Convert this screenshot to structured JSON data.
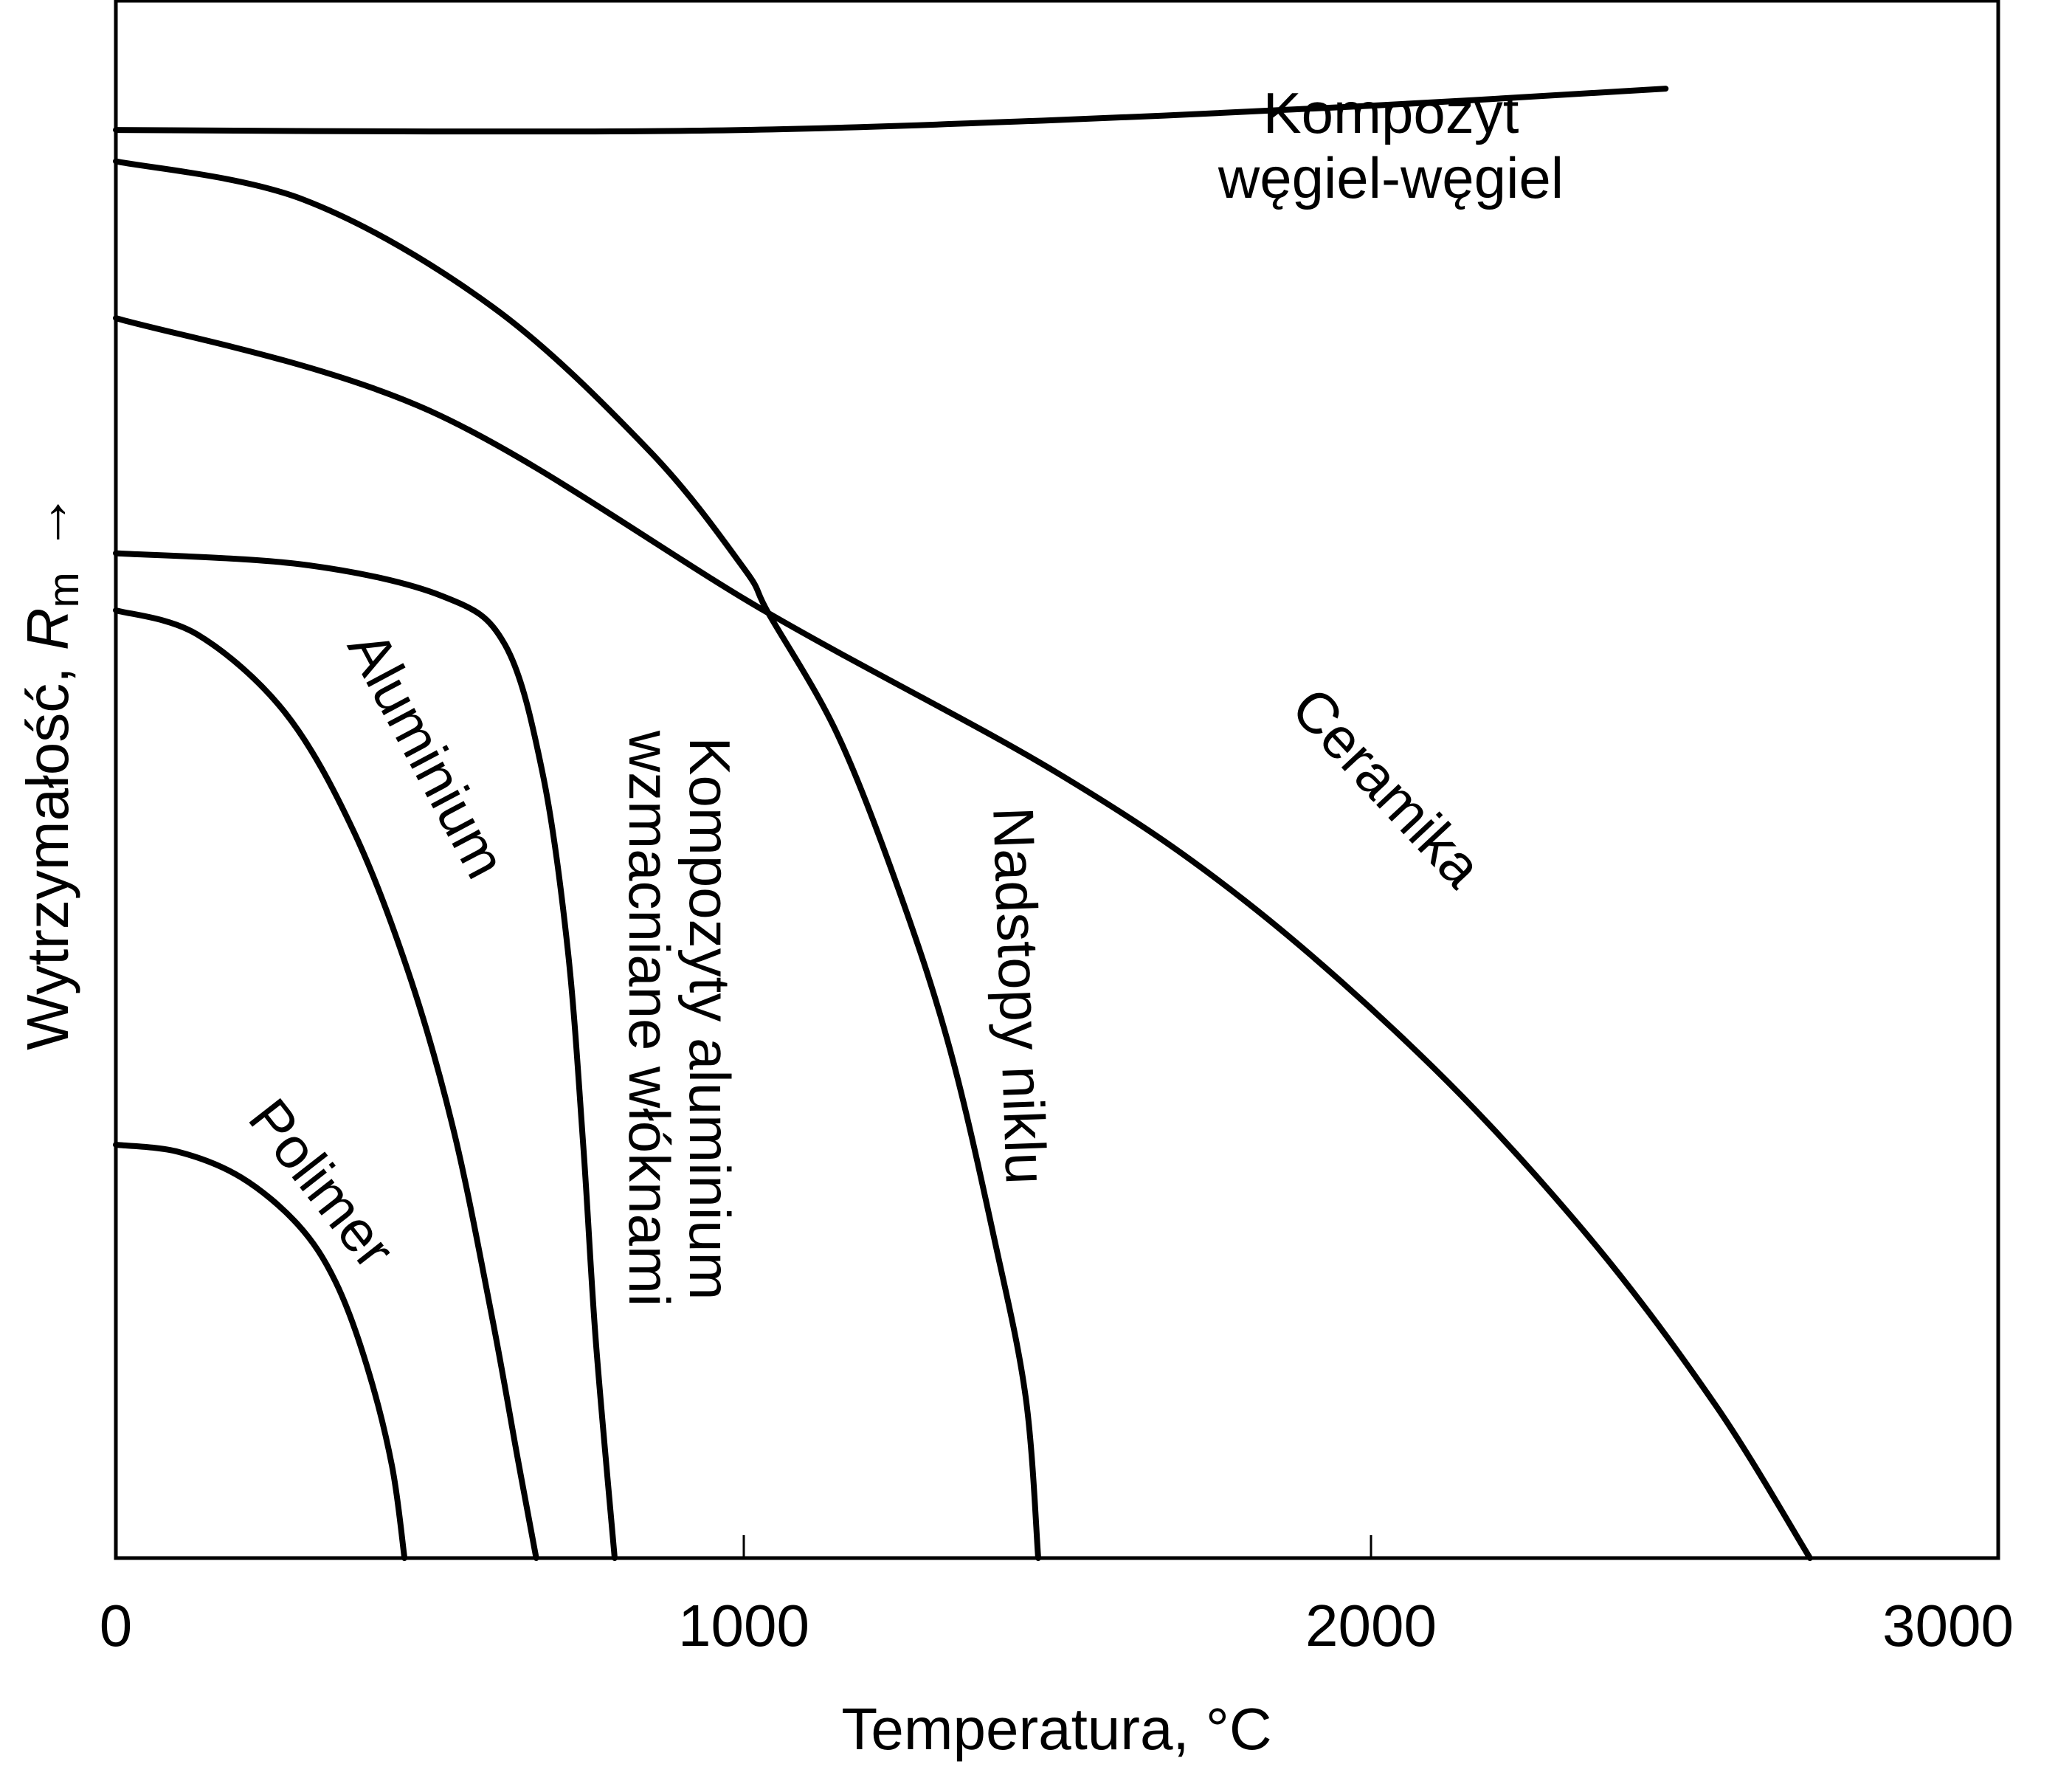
{
  "chart_data": {
    "type": "line",
    "xlabel": "Temperatura, °C",
    "ylabel": {
      "text": "Wytrzymałość, ",
      "symbol": "R",
      "subscript": "m",
      "arrow": "→"
    },
    "xlim": [
      0,
      3000
    ],
    "ylim": [
      0,
      100
    ],
    "x_ticks": [
      0,
      1000,
      2000,
      3000
    ],
    "x_tick_labels": [
      "0",
      "1000",
      "2000",
      "3000"
    ],
    "y_ticks_shown": false,
    "grid": false,
    "legend": "none (curves labelled directly)",
    "line_color": "#000000",
    "series": [
      {
        "id": "polimer",
        "label_lines": [
          "Polimer"
        ],
        "points": [
          [
            0,
            29
          ],
          [
            100,
            28.5
          ],
          [
            200,
            26.7
          ],
          [
            290,
            23.4
          ],
          [
            350,
            19.4
          ],
          [
            400,
            13.5
          ],
          [
            440,
            6.5
          ],
          [
            460,
            0
          ]
        ]
      },
      {
        "id": "aluminium",
        "label_lines": [
          "Aluminium"
        ],
        "points": [
          [
            0,
            66.5
          ],
          [
            130,
            64.8
          ],
          [
            270,
            59.3
          ],
          [
            380,
            50.9
          ],
          [
            470,
            40.6
          ],
          [
            540,
            29.7
          ],
          [
            600,
            16.8
          ],
          [
            640,
            7.1
          ],
          [
            670,
            0
          ]
        ]
      },
      {
        "id": "kompozyty-aluminium",
        "label_lines": [
          "Kompozyty aluminium",
          "wzmacniane włóknami"
        ],
        "points": [
          [
            0,
            70.5
          ],
          [
            300,
            69.7
          ],
          [
            520,
            67.5
          ],
          [
            620,
            64.1
          ],
          [
            680,
            55.1
          ],
          [
            720,
            42.8
          ],
          [
            745,
            28.9
          ],
          [
            765,
            15.2
          ],
          [
            795,
            0
          ]
        ]
      },
      {
        "id": "nadstopy-niklu",
        "label_lines": [
          "Nadstopy niklu"
        ],
        "points": [
          [
            0,
            98
          ],
          [
            300,
            95.3
          ],
          [
            600,
            87.8
          ],
          [
            850,
            77.7
          ],
          [
            1000,
            69.5
          ],
          [
            1040,
            66.3
          ],
          [
            1150,
            57.8
          ],
          [
            1250,
            46.6
          ],
          [
            1330,
            35.6
          ],
          [
            1400,
            22.4
          ],
          [
            1450,
            11.3
          ],
          [
            1470,
            0
          ]
        ]
      },
      {
        "id": "ceramika",
        "label_lines": [
          "Ceramika"
        ],
        "points": [
          [
            0,
            87
          ],
          [
            500,
            80.5
          ],
          [
            1040,
            66.3
          ],
          [
            1500,
            55.1
          ],
          [
            1800,
            46.1
          ],
          [
            2100,
            34.4
          ],
          [
            2350,
            22.4
          ],
          [
            2550,
            10.7
          ],
          [
            2700,
            0
          ]
        ]
      },
      {
        "id": "kompozyt-wegiel-wegiel",
        "label_lines": [
          "Kompozyt",
          "węgiel-węgiel"
        ],
        "points": [
          [
            0,
            100.2
          ],
          [
            500,
            100.1
          ],
          [
            1000,
            100.2
          ],
          [
            1500,
            100.9
          ],
          [
            2000,
            101.9
          ],
          [
            2470,
            103.1
          ]
        ]
      }
    ]
  }
}
